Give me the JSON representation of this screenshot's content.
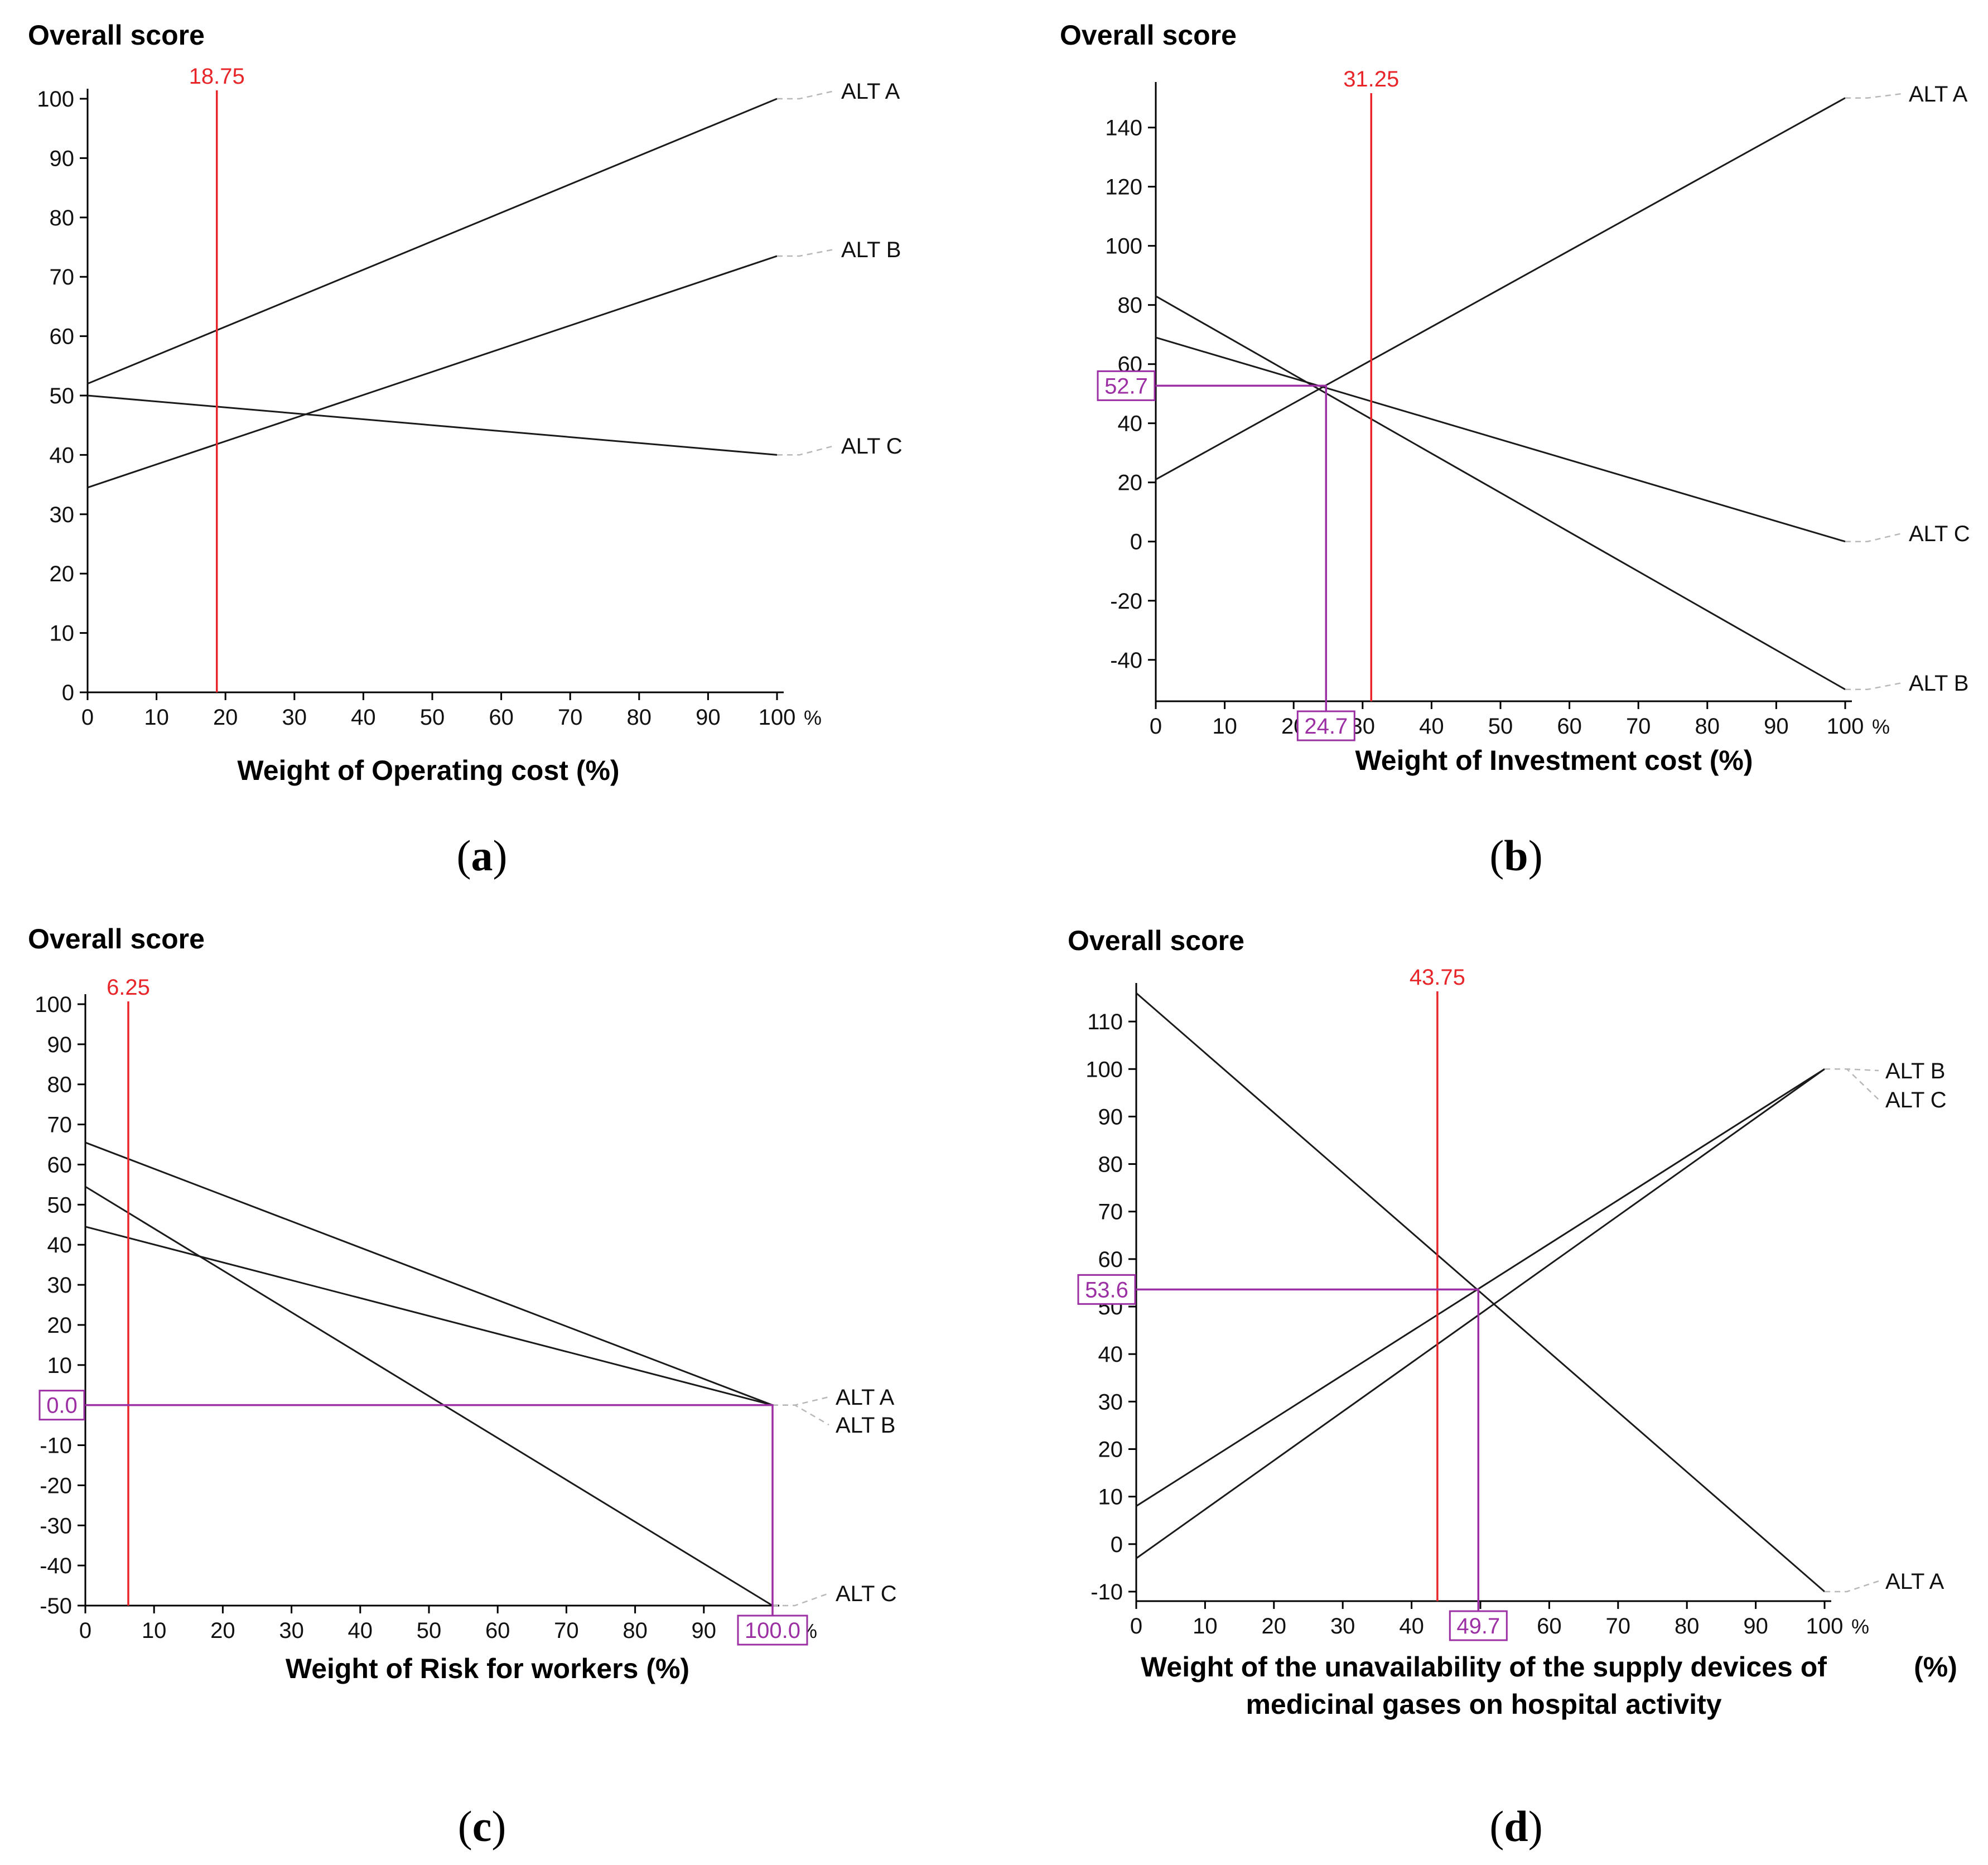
{
  "colors": {
    "ref_line": "#e8262a",
    "marker": "#9b2fa3",
    "series_line": "#1a1a1a",
    "axis": "#000000",
    "leader": "#b8b8b8"
  },
  "chart_data": [
    {
      "type": "line",
      "panel_label": "(a)",
      "title": "Overall score",
      "xlabel": "Weight of Operating cost (%)",
      "xlabel_line2": "",
      "x_unit": "%",
      "xlim": [
        0,
        100
      ],
      "ylim": [
        0,
        100
      ],
      "xticks": [
        0,
        10,
        20,
        30,
        40,
        50,
        60,
        70,
        80,
        90,
        100
      ],
      "yticks": [
        0,
        10,
        20,
        30,
        40,
        50,
        60,
        70,
        80,
        90,
        100
      ],
      "grid": false,
      "ref_line": {
        "x": 18.75,
        "label": "18.75"
      },
      "marker": null,
      "series": [
        {
          "name": "ALT A",
          "x": [
            0,
            100
          ],
          "y": [
            52,
            100
          ]
        },
        {
          "name": "ALT B",
          "x": [
            0,
            100
          ],
          "y": [
            34.5,
            73.5
          ]
        },
        {
          "name": "ALT C",
          "x": [
            0,
            100
          ],
          "y": [
            50,
            40
          ]
        }
      ]
    },
    {
      "type": "line",
      "panel_label": "(b)",
      "title": "Overall score",
      "xlabel": "Weight of Investment cost (%)",
      "xlabel_line2": "",
      "x_unit": "%",
      "xlim": [
        0,
        100
      ],
      "ylim": [
        -54,
        152
      ],
      "xticks": [
        0,
        10,
        20,
        30,
        40,
        50,
        60,
        70,
        80,
        90,
        100
      ],
      "yticks": [
        -40,
        -20,
        0,
        20,
        40,
        60,
        80,
        100,
        120,
        140
      ],
      "grid": false,
      "ref_line": {
        "x": 31.25,
        "label": "31.25"
      },
      "marker": {
        "x": 24.7,
        "y": 52.7,
        "x_label": "24.7",
        "y_label": "52.7"
      },
      "series": [
        {
          "name": "ALT A",
          "x": [
            0,
            100
          ],
          "y": [
            21,
            150
          ]
        },
        {
          "name": "ALT B",
          "x": [
            0,
            100
          ],
          "y": [
            83,
            -50
          ]
        },
        {
          "name": "ALT C",
          "x": [
            0,
            100
          ],
          "y": [
            69,
            0
          ]
        }
      ]
    },
    {
      "type": "line",
      "panel_label": "(c)",
      "title": "Overall score",
      "xlabel": "Weight of Risk for workers (%)",
      "xlabel_line2": "",
      "x_unit": "%",
      "xlim": [
        0,
        100
      ],
      "ylim": [
        -50,
        100
      ],
      "xticks": [
        0,
        10,
        20,
        30,
        40,
        50,
        60,
        70,
        80,
        90,
        100
      ],
      "yticks": [
        -50,
        -40,
        -30,
        -20,
        -10,
        0,
        10,
        20,
        30,
        40,
        50,
        60,
        70,
        80,
        90,
        100
      ],
      "grid": false,
      "ref_line": {
        "x": 6.25,
        "label": "6.25"
      },
      "marker": {
        "x": 100,
        "y": 0,
        "x_label": "100.0",
        "y_label": "0.0"
      },
      "series": [
        {
          "name": "ALT A",
          "x": [
            0,
            100
          ],
          "y": [
            65.5,
            0
          ]
        },
        {
          "name": "ALT B",
          "x": [
            0,
            100
          ],
          "y": [
            44.5,
            0
          ]
        },
        {
          "name": "ALT C",
          "x": [
            0,
            100
          ],
          "y": [
            54.5,
            -50
          ]
        }
      ]
    },
    {
      "type": "line",
      "panel_label": "(d)",
      "title": "Overall score",
      "xlabel": "Weight of the unavailability of the supply devices of",
      "xlabel_line2": "medicinal gases on hospital activity",
      "xlabel_unit": "(%)",
      "x_unit": "%",
      "xlim": [
        0,
        100
      ],
      "ylim": [
        -12,
        116
      ],
      "xticks": [
        0,
        10,
        20,
        30,
        40,
        50,
        60,
        70,
        80,
        90,
        100
      ],
      "yticks": [
        -10,
        0,
        10,
        20,
        30,
        40,
        50,
        60,
        70,
        80,
        90,
        100,
        110
      ],
      "grid": false,
      "ref_line": {
        "x": 43.75,
        "label": "43.75"
      },
      "marker": {
        "x": 49.7,
        "y": 53.6,
        "x_label": "49.7",
        "y_label": "53.6"
      },
      "series": [
        {
          "name": "ALT A",
          "x": [
            0,
            100
          ],
          "y": [
            116,
            -10
          ]
        },
        {
          "name": "ALT B",
          "x": [
            0,
            100
          ],
          "y": [
            8,
            100
          ]
        },
        {
          "name": "ALT C",
          "x": [
            0,
            100
          ],
          "y": [
            -3,
            100
          ]
        }
      ]
    }
  ]
}
